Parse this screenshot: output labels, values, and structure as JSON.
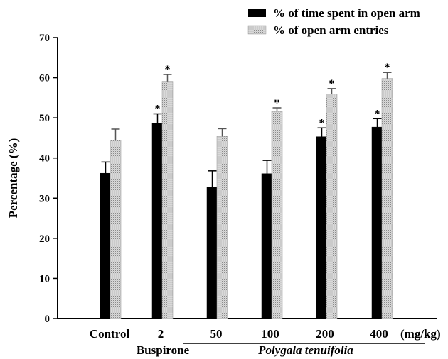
{
  "chart_data": {
    "type": "bar",
    "title": "",
    "xlabel": "",
    "ylabel": "Percentage (%)",
    "ylim": [
      0,
      70
    ],
    "yticks": [
      "0",
      "10",
      "20",
      "30",
      "40",
      "50",
      "60",
      "70"
    ],
    "categories": [
      "Control",
      "2",
      "50",
      "100",
      "200",
      "400"
    ],
    "x_unit": "(mg/kg)",
    "group_labels": [
      {
        "label": "Buspirone",
        "italic": false
      },
      {
        "label": "Polygala tenuifolia",
        "italic": true
      }
    ],
    "legend_position": "top-right",
    "grid": false,
    "series": [
      {
        "name": "% of time spent in open arm",
        "color": "#000000",
        "pattern": "solid",
        "values": [
          36.2,
          48.7,
          32.8,
          36.1,
          45.3,
          47.7
        ],
        "errors": [
          2.8,
          2.3,
          4.0,
          3.3,
          2.2,
          2.1
        ],
        "significant": [
          false,
          true,
          false,
          false,
          true,
          true
        ]
      },
      {
        "name": "% of open arm entries",
        "color": "#c8c8c8",
        "pattern": "dotted",
        "values": [
          44.4,
          59.1,
          45.4,
          51.6,
          55.9,
          59.8
        ],
        "errors": [
          2.8,
          1.7,
          1.9,
          0.9,
          1.4,
          1.5
        ],
        "significant": [
          false,
          true,
          false,
          true,
          true,
          true
        ]
      }
    ],
    "significance_marker": "*"
  }
}
